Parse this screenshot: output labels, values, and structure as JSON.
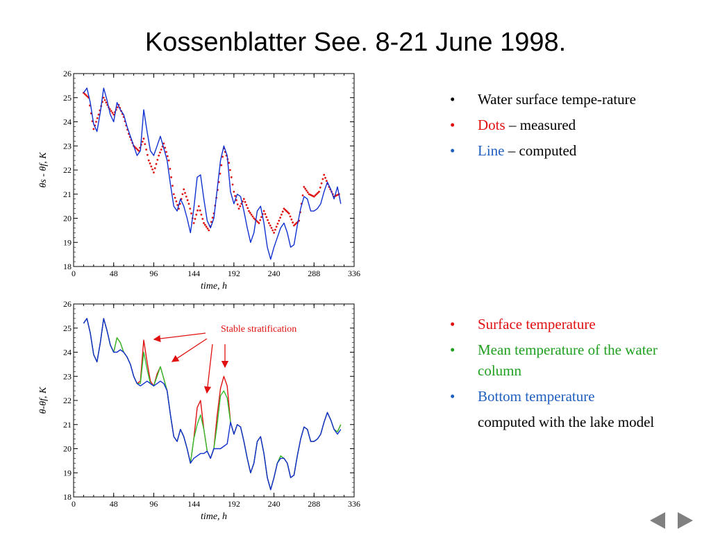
{
  "slide": {
    "title": "Kossenblatter See. 8-21 June 1998."
  },
  "colors": {
    "red": "#e01010",
    "blue": "#1030d0",
    "green": "#30c030",
    "bullet_red": "#e01010",
    "bullet_blue": "#1f5fbf",
    "bullet_green": "#20a020"
  },
  "legend1": {
    "items": [
      {
        "bullet": "•",
        "color": "black",
        "parts": [
          {
            "text": "Water surface tempe-rature",
            "color": "black"
          }
        ]
      },
      {
        "bullet": "•",
        "color": "red",
        "parts": [
          {
            "text": "Dots",
            "color": "red"
          },
          {
            "text": " – measured",
            "color": "black"
          }
        ]
      },
      {
        "bullet": "•",
        "color": "blue",
        "parts": [
          {
            "text": "Line",
            "color": "blue"
          },
          {
            "text": " – computed",
            "color": "black"
          }
        ]
      }
    ]
  },
  "legend2": {
    "items": [
      {
        "bullet": "•",
        "color": "red",
        "parts": [
          {
            "text": "Surface temperature",
            "color": "red"
          }
        ]
      },
      {
        "bullet": "•",
        "color": "green",
        "parts": [
          {
            "text": "Mean temperature of the water column",
            "color": "green"
          }
        ]
      },
      {
        "bullet": "•",
        "color": "blue",
        "parts": [
          {
            "text": "Bottom temperature",
            "color": "blue"
          }
        ]
      }
    ],
    "note": "computed with the lake model"
  },
  "nav": {
    "prev_icon": "triangle-left-icon",
    "next_icon": "triangle-right-icon"
  },
  "chart_data": [
    {
      "type": "line",
      "xlabel": "time, h",
      "ylabel": "θs - θf, K",
      "xlim": [
        0,
        336
      ],
      "ylim": [
        18,
        26
      ],
      "xticks": [
        0,
        48,
        96,
        144,
        192,
        240,
        288,
        336
      ],
      "yticks": [
        18,
        19,
        20,
        21,
        22,
        23,
        24,
        25,
        26
      ],
      "grid": false,
      "series": [
        {
          "name": "Dots",
          "style": "dots",
          "color": "#e01010",
          "x": [
            12,
            18,
            24,
            30,
            36,
            42,
            48,
            54,
            60,
            66,
            72,
            78,
            84,
            90,
            96,
            102,
            108,
            114,
            120,
            126,
            132,
            138,
            144,
            150,
            156,
            162,
            168,
            174,
            180,
            186,
            192,
            198,
            204,
            210,
            216,
            222,
            228,
            234,
            240,
            246,
            252,
            258,
            264,
            270,
            276,
            282,
            288,
            294,
            300,
            306,
            312,
            318
          ],
          "y": [
            25.2,
            25.0,
            23.7,
            24.3,
            25.0,
            24.6,
            24.3,
            24.7,
            24.2,
            23.5,
            23.0,
            22.8,
            23.3,
            22.4,
            21.9,
            22.6,
            23.1,
            22.4,
            21.0,
            20.4,
            21.2,
            20.6,
            19.8,
            20.5,
            19.8,
            19.5,
            20.2,
            21.5,
            22.9,
            22.3,
            21.1,
            20.4,
            20.8,
            20.3,
            20.0,
            19.8,
            20.3,
            19.8,
            19.4,
            19.9,
            20.4,
            20.2,
            19.7,
            19.9,
            21.3,
            21.0,
            20.9,
            21.1,
            21.8,
            21.3,
            20.9,
            21.0
          ]
        },
        {
          "name": "Line",
          "style": "line",
          "color": "#1030d0",
          "x": [
            12,
            16,
            20,
            24,
            28,
            32,
            36,
            40,
            44,
            48,
            52,
            56,
            60,
            64,
            68,
            72,
            76,
            80,
            84,
            88,
            92,
            96,
            100,
            104,
            108,
            112,
            116,
            120,
            124,
            128,
            132,
            136,
            140,
            144,
            148,
            152,
            156,
            160,
            164,
            168,
            172,
            176,
            180,
            184,
            188,
            192,
            196,
            200,
            204,
            208,
            212,
            216,
            220,
            224,
            228,
            232,
            236,
            240,
            244,
            248,
            252,
            256,
            260,
            264,
            268,
            272,
            276,
            280,
            284,
            288,
            292,
            296,
            300,
            304,
            308,
            312,
            316,
            320
          ],
          "y": [
            25.2,
            25.4,
            24.8,
            23.9,
            23.6,
            24.4,
            25.4,
            24.9,
            24.3,
            24.0,
            24.8,
            24.5,
            24.3,
            23.8,
            23.4,
            23.0,
            22.6,
            22.8,
            24.5,
            23.6,
            22.8,
            22.6,
            23.0,
            23.4,
            22.9,
            22.4,
            21.4,
            20.5,
            20.3,
            20.8,
            20.5,
            20.0,
            19.4,
            20.4,
            21.7,
            21.8,
            20.8,
            19.9,
            19.6,
            20.0,
            21.2,
            22.4,
            23.0,
            22.6,
            21.1,
            20.6,
            21.0,
            20.9,
            20.3,
            19.6,
            19.0,
            19.4,
            20.3,
            20.5,
            19.8,
            18.8,
            18.3,
            18.8,
            19.2,
            19.6,
            19.8,
            19.4,
            18.8,
            18.9,
            19.7,
            20.4,
            20.9,
            20.8,
            20.3,
            20.3,
            20.4,
            20.6,
            21.1,
            21.5,
            21.2,
            20.8,
            21.3,
            20.6
          ]
        }
      ]
    },
    {
      "type": "line",
      "xlabel": "time, h",
      "ylabel": "θ-θf, K",
      "xlim": [
        0,
        336
      ],
      "ylim": [
        18,
        26
      ],
      "xticks": [
        0,
        48,
        96,
        144,
        192,
        240,
        288,
        336
      ],
      "yticks": [
        18,
        19,
        20,
        21,
        22,
        23,
        24,
        25,
        26
      ],
      "grid": false,
      "annotation": "Stable stratification",
      "series": [
        {
          "name": "Surface temperature",
          "color": "#e01010",
          "x": [
            12,
            16,
            20,
            24,
            28,
            32,
            36,
            40,
            44,
            48,
            52,
            56,
            60,
            64,
            68,
            72,
            76,
            80,
            84,
            88,
            92,
            96,
            100,
            104,
            108,
            112,
            116,
            120,
            124,
            128,
            132,
            136,
            140,
            144,
            148,
            152,
            156,
            160,
            164,
            168,
            172,
            176,
            180,
            184,
            188,
            192,
            196,
            200,
            204,
            208,
            212,
            216,
            220,
            224,
            228,
            232,
            236,
            240,
            244,
            248,
            252,
            256,
            260,
            264,
            268,
            272,
            276,
            280,
            284,
            288,
            292,
            296,
            300,
            304,
            308,
            312,
            316,
            320
          ],
          "y": [
            25.2,
            25.4,
            24.8,
            23.9,
            23.6,
            24.4,
            25.4,
            24.9,
            24.3,
            24.0,
            24.6,
            24.4,
            24.0,
            23.8,
            23.5,
            23.0,
            22.7,
            22.8,
            24.5,
            23.6,
            22.8,
            22.6,
            23.1,
            23.4,
            22.9,
            22.4,
            21.4,
            20.5,
            20.3,
            20.8,
            20.5,
            20.0,
            19.4,
            20.4,
            21.7,
            22.0,
            20.8,
            19.9,
            19.6,
            20.0,
            21.4,
            22.5,
            23.0,
            22.6,
            21.1,
            20.6,
            21.0,
            20.9,
            20.3,
            19.6,
            19.0,
            19.4,
            20.3,
            20.5,
            19.8,
            18.8,
            18.3,
            18.8,
            19.4,
            19.7,
            19.6,
            19.4,
            18.8,
            18.9,
            19.7,
            20.4,
            20.9,
            20.8,
            20.3,
            20.3,
            20.4,
            20.6,
            21.1,
            21.5,
            21.2,
            20.8,
            20.7,
            21.0
          ]
        },
        {
          "name": "Mean temperature of the water column",
          "color": "#30c030",
          "x": [
            12,
            16,
            20,
            24,
            28,
            32,
            36,
            40,
            44,
            48,
            52,
            56,
            60,
            64,
            68,
            72,
            76,
            80,
            84,
            88,
            92,
            96,
            100,
            104,
            108,
            112,
            116,
            120,
            124,
            128,
            132,
            136,
            140,
            144,
            148,
            152,
            156,
            160,
            164,
            168,
            172,
            176,
            180,
            184,
            188,
            192,
            196,
            200,
            204,
            208,
            212,
            216,
            220,
            224,
            228,
            232,
            236,
            240,
            244,
            248,
            252,
            256,
            260,
            264,
            268,
            272,
            276,
            280,
            284,
            288,
            292,
            296,
            300,
            304,
            308,
            312,
            316,
            320
          ],
          "y": [
            25.2,
            25.4,
            24.8,
            23.9,
            23.6,
            24.4,
            25.4,
            24.9,
            24.3,
            24.0,
            24.6,
            24.4,
            24.0,
            23.8,
            23.5,
            23.0,
            22.7,
            22.7,
            24.0,
            23.3,
            22.7,
            22.6,
            23.0,
            23.4,
            22.9,
            22.4,
            21.4,
            20.5,
            20.3,
            20.8,
            20.5,
            20.0,
            19.4,
            20.4,
            21.0,
            21.4,
            20.8,
            19.9,
            19.6,
            20.0,
            21.0,
            22.2,
            22.4,
            22.1,
            21.1,
            20.6,
            21.0,
            20.9,
            20.3,
            19.6,
            19.0,
            19.4,
            20.3,
            20.5,
            19.8,
            18.8,
            18.3,
            18.8,
            19.4,
            19.7,
            19.6,
            19.4,
            18.8,
            18.9,
            19.7,
            20.4,
            20.9,
            20.8,
            20.3,
            20.3,
            20.4,
            20.6,
            21.1,
            21.5,
            21.2,
            20.8,
            20.7,
            21.0
          ]
        },
        {
          "name": "Bottom temperature",
          "color": "#1030d0",
          "x": [
            12,
            16,
            20,
            24,
            28,
            32,
            36,
            40,
            44,
            48,
            52,
            56,
            60,
            64,
            68,
            72,
            76,
            80,
            84,
            88,
            92,
            96,
            100,
            104,
            108,
            112,
            116,
            120,
            124,
            128,
            132,
            136,
            140,
            144,
            148,
            152,
            156,
            160,
            164,
            168,
            172,
            176,
            180,
            184,
            188,
            192,
            196,
            200,
            204,
            208,
            212,
            216,
            220,
            224,
            228,
            232,
            236,
            240,
            244,
            248,
            252,
            256,
            260,
            264,
            268,
            272,
            276,
            280,
            284,
            288,
            292,
            296,
            300,
            304,
            308,
            312,
            316,
            320
          ],
          "y": [
            25.2,
            25.4,
            24.8,
            23.9,
            23.6,
            24.4,
            25.4,
            24.9,
            24.3,
            24.0,
            24.0,
            24.1,
            24.0,
            23.8,
            23.5,
            23.0,
            22.7,
            22.6,
            22.7,
            22.8,
            22.7,
            22.6,
            22.7,
            22.8,
            22.7,
            22.4,
            21.4,
            20.5,
            20.3,
            20.8,
            20.5,
            20.0,
            19.4,
            19.6,
            19.7,
            19.8,
            19.8,
            19.9,
            19.6,
            20.0,
            20.0,
            20.0,
            20.1,
            20.2,
            21.1,
            20.6,
            21.0,
            20.9,
            20.3,
            19.6,
            19.0,
            19.4,
            20.3,
            20.5,
            19.8,
            18.8,
            18.3,
            18.8,
            19.4,
            19.6,
            19.6,
            19.4,
            18.8,
            18.9,
            19.7,
            20.4,
            20.9,
            20.8,
            20.3,
            20.3,
            20.4,
            20.6,
            21.1,
            21.5,
            21.2,
            20.8,
            20.6,
            20.8
          ]
        }
      ]
    }
  ]
}
